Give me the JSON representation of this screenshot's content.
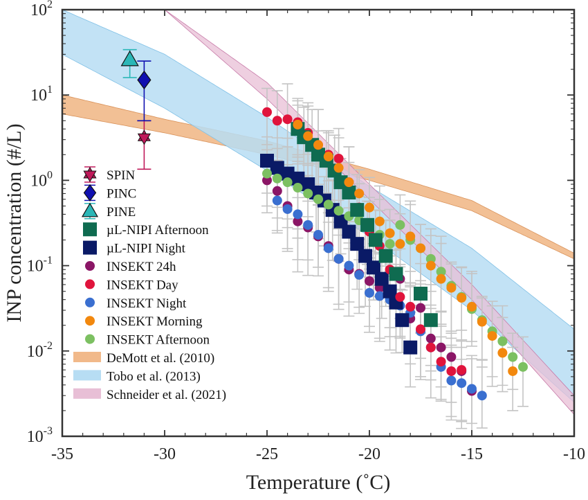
{
  "chart_data": {
    "type": "scatter",
    "xlabel": "Temperature (˚C)",
    "ylabel": "INP concentration (#/L)",
    "xlim": [
      -35,
      -10
    ],
    "ylim_log10": [
      -3,
      2
    ],
    "x_ticks": [
      -35,
      -30,
      -25,
      -20,
      -15,
      -10
    ],
    "x_tick_labels": [
      "-35",
      "-30",
      "-25",
      "-20",
      "-15",
      "-10"
    ],
    "y_ticks_log10": [
      -3,
      -2,
      -1,
      0,
      1,
      2
    ],
    "y_tick_base": "10",
    "y_tick_exponents": [
      "-3",
      "-2",
      "-1",
      "0",
      "1",
      "2"
    ],
    "grid": false,
    "legend_position": "left",
    "colors": {
      "spin": "#c0195a",
      "pinc": "#1010b0",
      "pine": "#2bb7b7",
      "unipi_afternoon": "#0f6b50",
      "unipi_night": "#0a1a66",
      "insekt_24h": "#8b1666",
      "insekt_day": "#e0143c",
      "insekt_night": "#3a6fd0",
      "insekt_morning": "#f2880e",
      "insekt_afternoon": "#7cc061",
      "errorbar": "#c4c4c4",
      "demott": "#f1b98a",
      "tobo": "#b7ddf3",
      "schneider": "#e8bfd6"
    },
    "parameterizations": [
      {
        "name": "DeMott et al. (2010)",
        "key": "demott",
        "x": [
          -35,
          -30,
          -25,
          -20,
          -15,
          -10
        ],
        "lower": [
          6,
          3.6,
          2.0,
          1.0,
          0.44,
          0.12
        ],
        "upper": [
          10,
          5.2,
          2.9,
          1.35,
          0.58,
          0.14
        ]
      },
      {
        "name": "Tobo et al. (2013)",
        "key": "tobo",
        "x": [
          -35,
          -30,
          -25,
          -20,
          -15,
          -10
        ],
        "lower": [
          30,
          7,
          1.3,
          0.22,
          0.03,
          0.0025
        ],
        "upper": [
          100,
          30,
          5.5,
          0.85,
          0.16,
          0.018
        ]
      },
      {
        "name": "Schneider et al. (2021)",
        "key": "schneider",
        "x": [
          -30,
          -25,
          -20,
          -15,
          -10
        ],
        "lower": [
          100,
          9,
          0.6,
          0.04,
          0.0018
        ],
        "upper": [
          100,
          14,
          0.9,
          0.06,
          0.003
        ]
      }
    ],
    "series": [
      {
        "name": "SPIN",
        "key": "spin",
        "marker": "hexagram",
        "points": [
          {
            "x": -31,
            "y": 3.2,
            "lo": 1.35,
            "hi": 5.0
          }
        ]
      },
      {
        "name": "PINC",
        "key": "pinc",
        "marker": "diamond",
        "points": [
          {
            "x": -31,
            "y": 15,
            "lo": 5,
            "hi": 25
          }
        ]
      },
      {
        "name": "PINE",
        "key": "pine",
        "marker": "triangle",
        "points": [
          {
            "x": -31.7,
            "y": 26,
            "lo": 16,
            "hi": 34
          }
        ]
      },
      {
        "name": "µL-NIPI Afternoon",
        "key": "unipi_afternoon",
        "marker": "square",
        "points": [
          {
            "x": -23.5,
            "y": 4.0
          },
          {
            "x": -23.2,
            "y": 3.2
          },
          {
            "x": -22.8,
            "y": 2.6
          },
          {
            "x": -22.5,
            "y": 2.0
          },
          {
            "x": -22.1,
            "y": 1.7
          },
          {
            "x": -21.7,
            "y": 1.3
          },
          {
            "x": -21.4,
            "y": 0.95
          },
          {
            "x": -21.0,
            "y": 0.72
          },
          {
            "x": -20.6,
            "y": 0.45
          },
          {
            "x": -20.1,
            "y": 0.3
          },
          {
            "x": -19.7,
            "y": 0.2
          },
          {
            "x": -19.2,
            "y": 0.13
          },
          {
            "x": -18.7,
            "y": 0.08
          },
          {
            "x": -17.5,
            "y": 0.047
          },
          {
            "x": -17.0,
            "y": 0.023
          }
        ]
      },
      {
        "name": "µL-NIPI Night",
        "key": "unipi_night",
        "marker": "square",
        "points": [
          {
            "x": -25.0,
            "y": 1.7
          },
          {
            "x": -24.5,
            "y": 1.4
          },
          {
            "x": -24.0,
            "y": 1.2
          },
          {
            "x": -23.5,
            "y": 1.05
          },
          {
            "x": -23.0,
            "y": 0.9
          },
          {
            "x": -22.6,
            "y": 0.72
          },
          {
            "x": -22.2,
            "y": 0.58
          },
          {
            "x": -21.8,
            "y": 0.45
          },
          {
            "x": -21.4,
            "y": 0.33
          },
          {
            "x": -21.0,
            "y": 0.25
          },
          {
            "x": -20.6,
            "y": 0.18
          },
          {
            "x": -20.2,
            "y": 0.13
          },
          {
            "x": -19.8,
            "y": 0.095
          },
          {
            "x": -19.4,
            "y": 0.07
          },
          {
            "x": -19.0,
            "y": 0.05
          },
          {
            "x": -18.7,
            "y": 0.037
          },
          {
            "x": -18.4,
            "y": 0.023
          },
          {
            "x": -18.0,
            "y": 0.011
          }
        ]
      },
      {
        "name": "INSEKT 24h",
        "key": "insekt_24h",
        "marker": "circle",
        "points": [
          {
            "x": -25,
            "y": 1.0
          },
          {
            "x": -24.5,
            "y": 0.75
          },
          {
            "x": -24,
            "y": 0.5
          },
          {
            "x": -23.5,
            "y": 0.33
          },
          {
            "x": -23,
            "y": 0.28
          },
          {
            "x": -22.5,
            "y": 0.22
          },
          {
            "x": -22,
            "y": 0.17
          },
          {
            "x": -21.5,
            "y": 0.12
          },
          {
            "x": -21,
            "y": 0.09
          },
          {
            "x": -20.5,
            "y": 0.08
          },
          {
            "x": -20,
            "y": 0.066
          },
          {
            "x": -19.5,
            "y": 0.055
          },
          {
            "x": -19,
            "y": 0.045
          },
          {
            "x": -18.5,
            "y": 0.07
          },
          {
            "x": -18,
            "y": 0.024
          },
          {
            "x": -17.5,
            "y": 0.032
          },
          {
            "x": -17,
            "y": 0.014
          },
          {
            "x": -16.5,
            "y": 0.011
          },
          {
            "x": -16,
            "y": 0.0085
          },
          {
            "x": -15.5,
            "y": 0.0058
          },
          {
            "x": -15,
            "y": 0.0034
          }
        ]
      },
      {
        "name": "INSEKT Day",
        "key": "insekt_day",
        "marker": "circle",
        "points": [
          {
            "x": -25,
            "y": 6.3
          },
          {
            "x": -24.5,
            "y": 5.0
          },
          {
            "x": -24,
            "y": 5.2
          },
          {
            "x": -23.5,
            "y": 4.8
          },
          {
            "x": -23,
            "y": 3.6
          },
          {
            "x": -22.5,
            "y": 2.6
          },
          {
            "x": -22,
            "y": 2.0
          },
          {
            "x": -21.5,
            "y": 1.8
          },
          {
            "x": -21,
            "y": 0.95
          },
          {
            "x": -20.5,
            "y": 0.48
          },
          {
            "x": -20,
            "y": 0.25
          },
          {
            "x": -19.5,
            "y": 0.17
          },
          {
            "x": -19,
            "y": 0.09
          },
          {
            "x": -18.5,
            "y": 0.043
          },
          {
            "x": -18,
            "y": 0.033
          },
          {
            "x": -17.5,
            "y": 0.018
          },
          {
            "x": -17,
            "y": 0.011
          },
          {
            "x": -16.5,
            "y": 0.0075
          },
          {
            "x": -16,
            "y": 0.0058
          },
          {
            "x": -15.5,
            "y": 0.006
          }
        ]
      },
      {
        "name": "INSEKT Night",
        "key": "insekt_night",
        "marker": "circle",
        "points": [
          {
            "x": -24.5,
            "y": 0.58
          },
          {
            "x": -24,
            "y": 0.46
          },
          {
            "x": -23.5,
            "y": 0.4
          },
          {
            "x": -23,
            "y": 0.3
          },
          {
            "x": -22.5,
            "y": 0.23
          },
          {
            "x": -22,
            "y": 0.16
          },
          {
            "x": -21.5,
            "y": 0.12
          },
          {
            "x": -21,
            "y": 0.1
          },
          {
            "x": -20.5,
            "y": 0.078
          },
          {
            "x": -20,
            "y": 0.048
          },
          {
            "x": -19.5,
            "y": 0.044
          },
          {
            "x": -19,
            "y": 0.04
          },
          {
            "x": -18.5,
            "y": 0.034
          },
          {
            "x": -18,
            "y": 0.028
          },
          {
            "x": -17.5,
            "y": 0.017
          },
          {
            "x": -17,
            "y": 0.011
          },
          {
            "x": -16.5,
            "y": 0.0065
          },
          {
            "x": -16,
            "y": 0.0045
          },
          {
            "x": -15.5,
            "y": 0.0042
          },
          {
            "x": -15,
            "y": 0.0036
          },
          {
            "x": -14.5,
            "y": 0.003
          }
        ]
      },
      {
        "name": "INSEKT Morning",
        "key": "insekt_morning",
        "marker": "circle",
        "points": [
          {
            "x": -23.5,
            "y": 4.5
          },
          {
            "x": -23,
            "y": 3.3
          },
          {
            "x": -22.5,
            "y": 2.6
          },
          {
            "x": -22,
            "y": 1.9
          },
          {
            "x": -21.5,
            "y": 1.4
          },
          {
            "x": -21,
            "y": 0.95
          },
          {
            "x": -20.5,
            "y": 0.7
          },
          {
            "x": -20,
            "y": 0.48
          },
          {
            "x": -19.5,
            "y": 0.33
          },
          {
            "x": -19,
            "y": 0.24
          },
          {
            "x": -18.5,
            "y": 0.18
          },
          {
            "x": -18,
            "y": 0.22
          },
          {
            "x": -17.5,
            "y": 0.16
          },
          {
            "x": -17,
            "y": 0.1
          },
          {
            "x": -16.5,
            "y": 0.07
          },
          {
            "x": -16,
            "y": 0.055
          },
          {
            "x": -15.5,
            "y": 0.042
          },
          {
            "x": -15,
            "y": 0.033
          },
          {
            "x": -14.5,
            "y": 0.022
          },
          {
            "x": -14,
            "y": 0.015
          },
          {
            "x": -13.5,
            "y": 0.0095
          },
          {
            "x": -13,
            "y": 0.0058
          }
        ]
      },
      {
        "name": "INSEKT Afternoon",
        "key": "insekt_afternoon",
        "marker": "circle",
        "points": [
          {
            "x": -25,
            "y": 1.2
          },
          {
            "x": -24.5,
            "y": 1.05
          },
          {
            "x": -24,
            "y": 0.95
          },
          {
            "x": -23.5,
            "y": 0.82
          },
          {
            "x": -23,
            "y": 0.7
          },
          {
            "x": -22.5,
            "y": 0.6
          },
          {
            "x": -22,
            "y": 0.52
          },
          {
            "x": -21.5,
            "y": 0.44
          },
          {
            "x": -21,
            "y": 0.38
          },
          {
            "x": -20.5,
            "y": 0.34
          },
          {
            "x": -20,
            "y": 0.28
          },
          {
            "x": -19.5,
            "y": 0.23
          },
          {
            "x": -19,
            "y": 0.18
          },
          {
            "x": -18.5,
            "y": 0.3
          },
          {
            "x": -18,
            "y": 0.2
          },
          {
            "x": -17.5,
            "y": 0.16
          },
          {
            "x": -17,
            "y": 0.12
          },
          {
            "x": -16.5,
            "y": 0.085
          },
          {
            "x": -16,
            "y": 0.058
          },
          {
            "x": -15.5,
            "y": 0.043
          },
          {
            "x": -15,
            "y": 0.031
          },
          {
            "x": -14.5,
            "y": 0.023
          },
          {
            "x": -14,
            "y": 0.017
          },
          {
            "x": -13.5,
            "y": 0.013
          },
          {
            "x": -13,
            "y": 0.0085
          },
          {
            "x": -12.5,
            "y": 0.0065
          }
        ]
      }
    ]
  }
}
